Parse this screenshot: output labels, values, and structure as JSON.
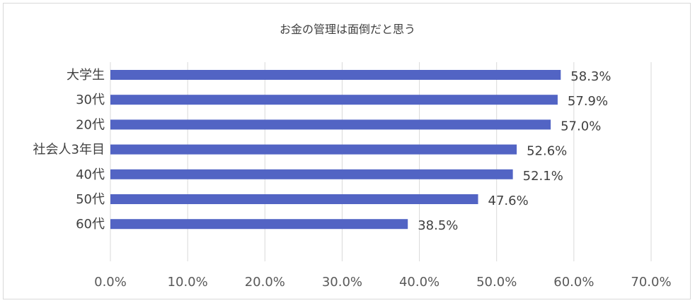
{
  "chart_data": {
    "type": "bar",
    "orientation": "horizontal",
    "title": "お金の管理は面倒だと思う",
    "categories": [
      "大学生",
      "30代",
      "20代",
      "社会人3年目",
      "40代",
      "50代",
      "60代"
    ],
    "values": [
      58.3,
      57.9,
      57.0,
      52.6,
      52.1,
      47.6,
      38.5
    ],
    "value_labels": [
      "58.3%",
      "57.9%",
      "57.0%",
      "52.6%",
      "52.1%",
      "47.6%",
      "38.5%"
    ],
    "xlim": [
      0,
      70
    ],
    "x_ticks": [
      0,
      10,
      20,
      30,
      40,
      50,
      60,
      70
    ],
    "x_tick_labels": [
      "0.0%",
      "10.0%",
      "20.0%",
      "30.0%",
      "40.0%",
      "50.0%",
      "60.0%",
      "70.0%"
    ],
    "xlabel": "",
    "ylabel": "",
    "grid": true,
    "legend": "none",
    "bar_color": "#5264c4"
  }
}
